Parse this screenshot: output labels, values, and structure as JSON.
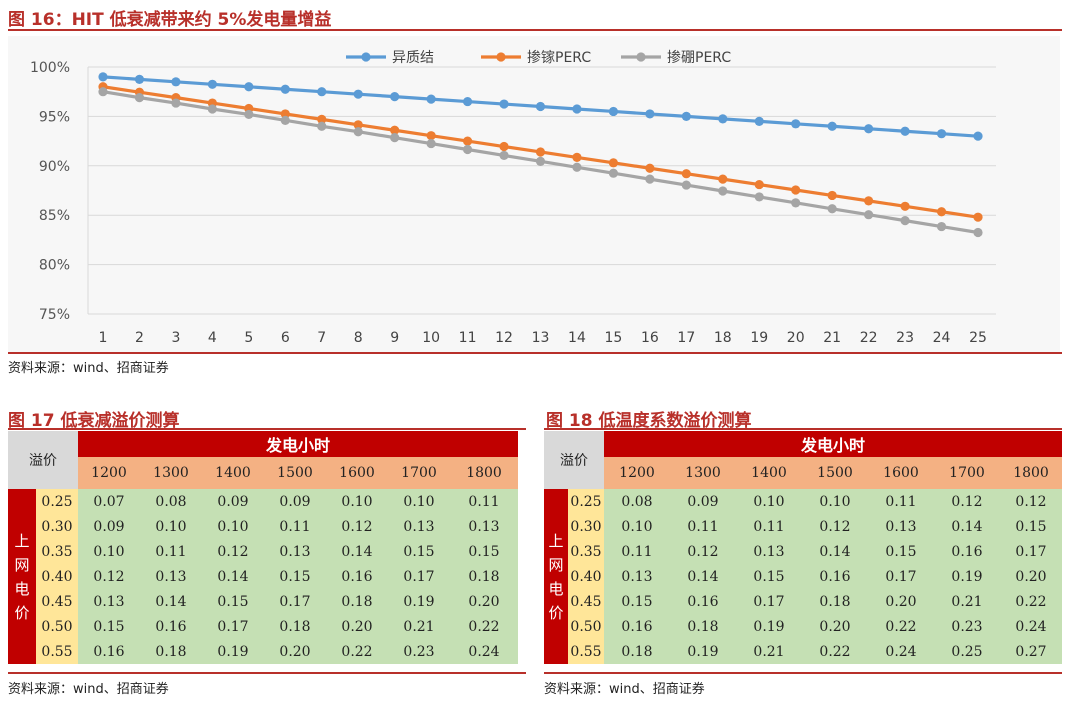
{
  "fig16": {
    "title": "图 16：HIT 低衰减带来约 5%发电量增益",
    "source": "资料来源：wind、招商证券"
  },
  "fig17": {
    "title": "图 17 低衰减溢价测算",
    "source": "资料来源：wind、招商证券",
    "corner": "溢价",
    "header": "发电小时",
    "row_label": "上网电价",
    "hours": [
      "1200",
      "1300",
      "1400",
      "1500",
      "1600",
      "1700",
      "1800"
    ],
    "prices": [
      "0.25",
      "0.30",
      "0.35",
      "0.40",
      "0.45",
      "0.50",
      "0.55"
    ],
    "rows": [
      [
        "0.07",
        "0.08",
        "0.09",
        "0.09",
        "0.10",
        "0.10",
        "0.11"
      ],
      [
        "0.09",
        "0.10",
        "0.10",
        "0.11",
        "0.12",
        "0.13",
        "0.13"
      ],
      [
        "0.10",
        "0.11",
        "0.12",
        "0.13",
        "0.14",
        "0.15",
        "0.15"
      ],
      [
        "0.12",
        "0.13",
        "0.14",
        "0.15",
        "0.16",
        "0.17",
        "0.18"
      ],
      [
        "0.13",
        "0.14",
        "0.15",
        "0.17",
        "0.18",
        "0.19",
        "0.20"
      ],
      [
        "0.15",
        "0.16",
        "0.17",
        "0.18",
        "0.20",
        "0.21",
        "0.22"
      ],
      [
        "0.16",
        "0.18",
        "0.19",
        "0.20",
        "0.22",
        "0.23",
        "0.24"
      ]
    ]
  },
  "fig18": {
    "title": "图 18 低温度系数溢价测算",
    "source": "资料来源：wind、招商证券",
    "corner": "溢价",
    "header": "发电小时",
    "row_label": "上网电价",
    "hours": [
      "1200",
      "1300",
      "1400",
      "1500",
      "1600",
      "1700",
      "1800"
    ],
    "prices": [
      "0.25",
      "0.30",
      "0.35",
      "0.40",
      "0.45",
      "0.50",
      "0.55"
    ],
    "rows": [
      [
        "0.08",
        "0.09",
        "0.10",
        "0.10",
        "0.11",
        "0.12",
        "0.12"
      ],
      [
        "0.10",
        "0.11",
        "0.11",
        "0.12",
        "0.13",
        "0.14",
        "0.15"
      ],
      [
        "0.11",
        "0.12",
        "0.13",
        "0.14",
        "0.15",
        "0.16",
        "0.17"
      ],
      [
        "0.13",
        "0.14",
        "0.15",
        "0.16",
        "0.17",
        "0.19",
        "0.20"
      ],
      [
        "0.15",
        "0.16",
        "0.17",
        "0.18",
        "0.20",
        "0.21",
        "0.22"
      ],
      [
        "0.16",
        "0.18",
        "0.19",
        "0.20",
        "0.22",
        "0.23",
        "0.24"
      ],
      [
        "0.18",
        "0.19",
        "0.21",
        "0.22",
        "0.24",
        "0.25",
        "0.27"
      ]
    ]
  },
  "chart_data": {
    "type": "line",
    "title": "",
    "xlabel": "",
    "ylabel": "",
    "x": [
      1,
      2,
      3,
      4,
      5,
      6,
      7,
      8,
      9,
      10,
      11,
      12,
      13,
      14,
      15,
      16,
      17,
      18,
      19,
      20,
      21,
      22,
      23,
      24,
      25
    ],
    "ylim": [
      75,
      100
    ],
    "yticks": [
      75,
      80,
      85,
      90,
      95,
      100
    ],
    "ytick_labels": [
      "75%",
      "80%",
      "85%",
      "90%",
      "95%",
      "100%"
    ],
    "grid": true,
    "legend": "top-center",
    "series": [
      {
        "name": "异质结",
        "color": "#5b9bd5",
        "values": [
          99.0,
          98.75,
          98.5,
          98.25,
          98.0,
          97.75,
          97.5,
          97.25,
          97.0,
          96.75,
          96.5,
          96.25,
          96.0,
          95.75,
          95.5,
          95.25,
          95.0,
          94.75,
          94.5,
          94.25,
          94.0,
          93.75,
          93.5,
          93.25,
          93.0
        ]
      },
      {
        "name": "掺镓PERC",
        "color": "#ed7d31",
        "values": [
          98.0,
          97.45,
          96.9,
          96.35,
          95.8,
          95.25,
          94.7,
          94.15,
          93.6,
          93.05,
          92.5,
          91.95,
          91.4,
          90.85,
          90.3,
          89.75,
          89.2,
          88.65,
          88.1,
          87.55,
          87.0,
          86.45,
          85.9,
          85.35,
          84.8
        ]
      },
      {
        "name": "掺硼PERC",
        "color": "#a5a5a5",
        "values": [
          97.5,
          96.9,
          96.35,
          95.75,
          95.2,
          94.6,
          94.0,
          93.45,
          92.85,
          92.25,
          91.65,
          91.05,
          90.45,
          89.85,
          89.25,
          88.65,
          88.05,
          87.45,
          86.85,
          86.25,
          85.65,
          85.05,
          84.45,
          83.85,
          83.25
        ]
      }
    ]
  }
}
